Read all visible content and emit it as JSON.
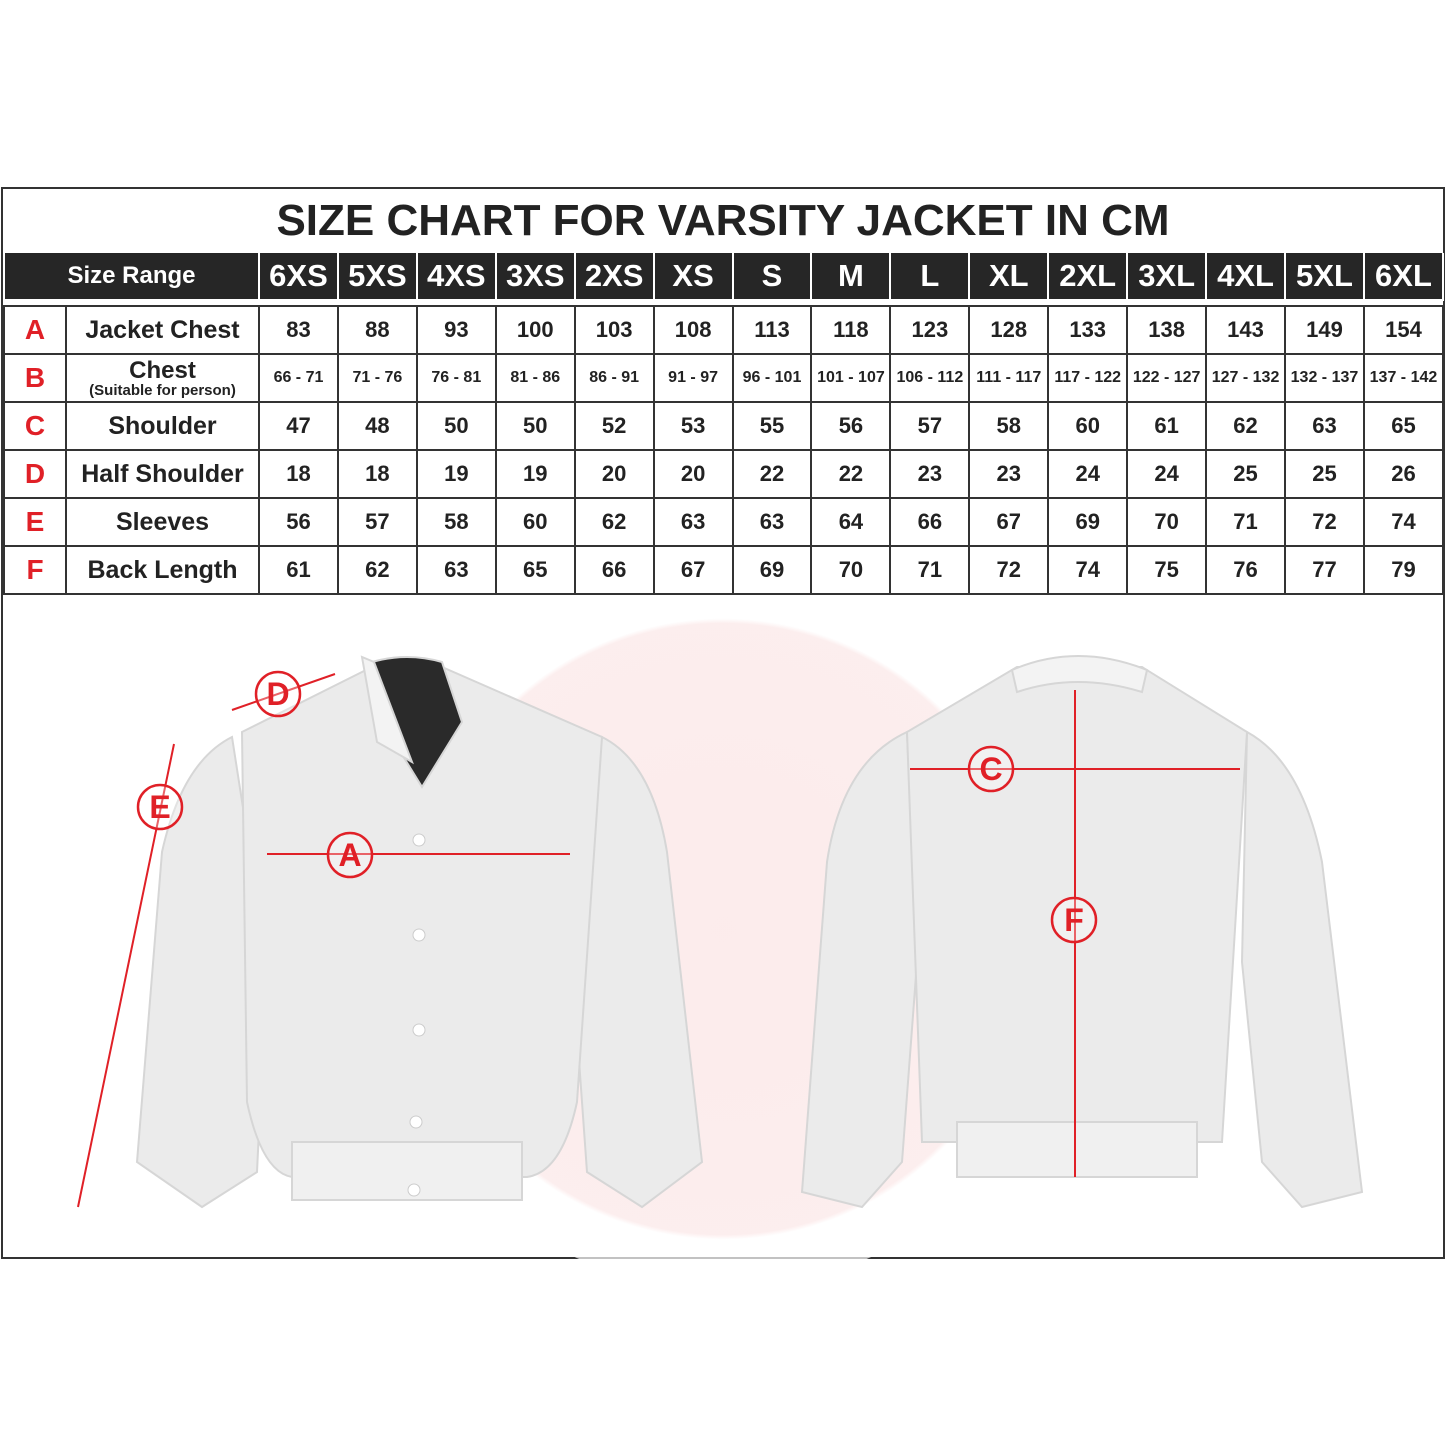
{
  "title": "SIZE CHART FOR VARSITY JACKET IN CM",
  "header": {
    "range_label": "Size Range",
    "sizes": [
      "6XS",
      "5XS",
      "4XS",
      "3XS",
      "2XS",
      "XS",
      "S",
      "M",
      "L",
      "XL",
      "2XL",
      "3XL",
      "4XL",
      "5XL",
      "6XL"
    ]
  },
  "rows": [
    {
      "letter": "A",
      "label": "Jacket Chest",
      "values": [
        "83",
        "88",
        "93",
        "100",
        "103",
        "108",
        "113",
        "118",
        "123",
        "128",
        "133",
        "138",
        "143",
        "149",
        "154"
      ]
    },
    {
      "letter": "B",
      "label": "Chest",
      "sublabel": "(Suitable for person)",
      "values": [
        "66 - 71",
        "71 - 76",
        "76 - 81",
        "81 - 86",
        "86 - 91",
        "91 - 97",
        "96 - 101",
        "101 - 107",
        "106 - 112",
        "111 - 117",
        "117 - 122",
        "122 - 127",
        "127 - 132",
        "132 - 137",
        "137 - 142"
      ]
    },
    {
      "letter": "C",
      "label": "Shoulder",
      "values": [
        "47",
        "48",
        "50",
        "50",
        "52",
        "53",
        "55",
        "56",
        "57",
        "58",
        "60",
        "61",
        "62",
        "63",
        "65"
      ]
    },
    {
      "letter": "D",
      "label": "Half Shoulder",
      "values": [
        "18",
        "18",
        "19",
        "19",
        "20",
        "20",
        "22",
        "22",
        "23",
        "23",
        "24",
        "24",
        "25",
        "25",
        "26"
      ]
    },
    {
      "letter": "E",
      "label": "Sleeves",
      "values": [
        "56",
        "57",
        "58",
        "60",
        "62",
        "63",
        "63",
        "64",
        "66",
        "67",
        "69",
        "70",
        "71",
        "72",
        "74"
      ]
    },
    {
      "letter": "F",
      "label": "Back Length",
      "values": [
        "61",
        "62",
        "63",
        "65",
        "66",
        "67",
        "69",
        "70",
        "71",
        "72",
        "74",
        "75",
        "76",
        "77",
        "79"
      ]
    }
  ],
  "markers": {
    "front": [
      "D",
      "E",
      "A"
    ],
    "back": [
      "C",
      "F"
    ]
  },
  "colors": {
    "accent": "#e02027",
    "header_bg": "#262626"
  }
}
